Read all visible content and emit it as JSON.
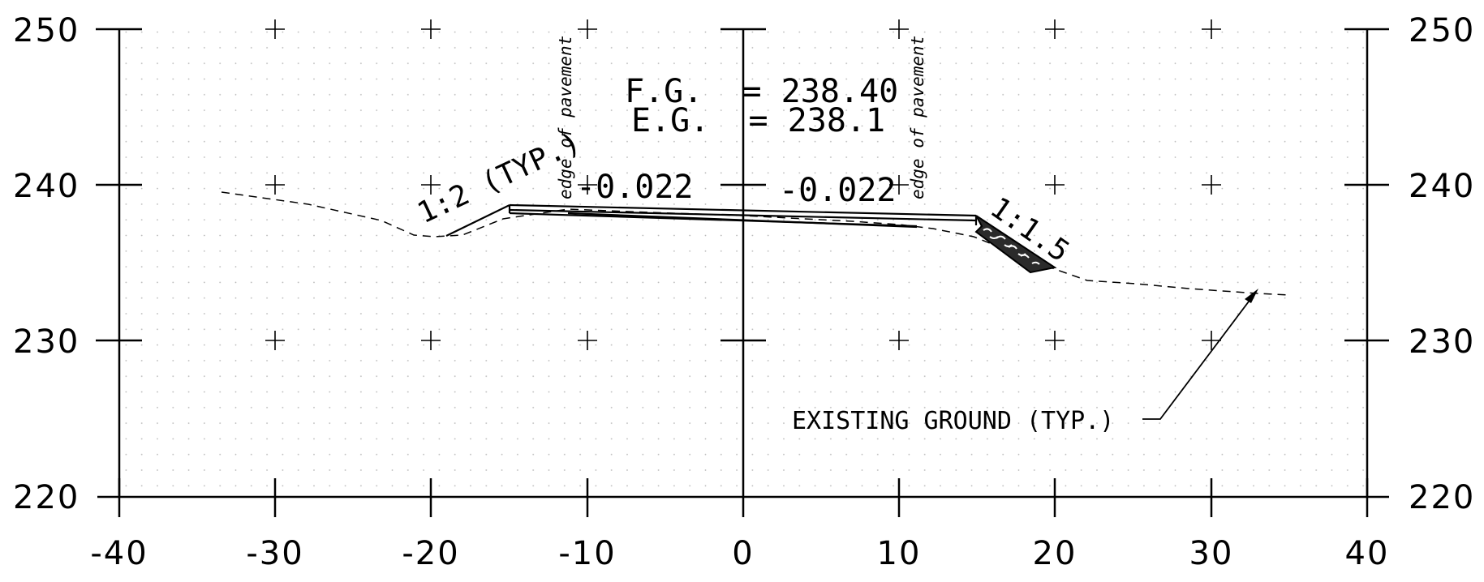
{
  "axes": {
    "x_ticks": [
      "-40",
      "-30",
      "-20",
      "-10",
      "0",
      "10",
      "20",
      "30",
      "40"
    ],
    "y_ticks": [
      "220",
      "230",
      "240",
      "250"
    ]
  },
  "annotations": {
    "finished_grade": "F.G.  = 238.40",
    "existing_grade": "E.G.  = 238.1",
    "left_cross_slope": "-0.022",
    "right_cross_slope": "-0.022",
    "left_side_slope": "1:2 (TYP.)",
    "right_side_slope": "1:1.5",
    "edge_of_pavement_left": "edge of pavement",
    "edge_of_pavement_right": "edge of pavement",
    "existing_ground_label": "EXISTING GROUND (TYP.)"
  },
  "colors": {
    "ink": "#000000",
    "background": "#ffffff",
    "dot_grid": "#b8b8b8"
  },
  "section_data": {
    "offset_range": [
      -40,
      40
    ],
    "elevation_range": [
      220,
      250
    ],
    "existing_ground": [
      [
        -33.6,
        239.5
      ],
      [
        -28,
        238.8
      ],
      [
        -23,
        237.8
      ],
      [
        -20.5,
        236.6
      ],
      [
        -19.5,
        236.5
      ],
      [
        -17.5,
        236.5
      ],
      [
        -14,
        237.6
      ],
      [
        -10,
        238.3
      ],
      [
        0,
        238.1
      ],
      [
        10,
        237.6
      ],
      [
        15,
        237.3
      ],
      [
        17,
        236.8
      ],
      [
        20,
        235.6
      ],
      [
        22,
        234.2
      ],
      [
        25,
        234.0
      ],
      [
        33,
        233.0
      ],
      [
        35,
        232.9
      ]
    ],
    "finished_grade_top": [
      [
        -15,
        238.8
      ],
      [
        0,
        238.4
      ],
      [
        15,
        238.0
      ]
    ],
    "left_slope_toe": [
      -18.9,
      236.6
    ],
    "right_slope_toe": [
      18.3,
      234.6
    ]
  }
}
